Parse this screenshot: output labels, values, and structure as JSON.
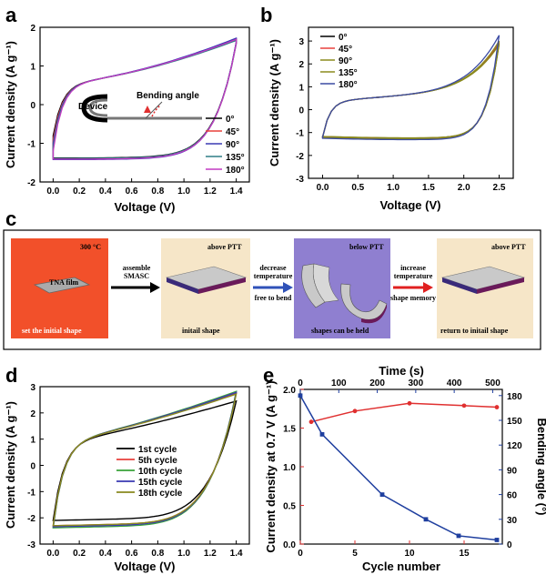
{
  "panel_labels": {
    "a": "a",
    "b": "b",
    "c": "c",
    "d": "d",
    "e": "e"
  },
  "colors": {
    "black": "#000000",
    "red": "#e8413c",
    "blue": "#3a3ab3",
    "green": "#3aa33a",
    "teal": "#2f7f86",
    "magenta": "#c23ac2",
    "olive": "#8a8a1e",
    "navy": "#3a4aa3",
    "red_series": "#e03030",
    "blue_series": "#1f3f9f",
    "orange_box": "#f2502a",
    "beige_box": "#f6e6c8",
    "purple_box": "#8f7fd0"
  },
  "chart_data": [
    {
      "id": "a",
      "type": "line",
      "xlabel": "Voltage (V)",
      "ylabel": "Current density (A g⁻¹)",
      "xlim": [
        -0.1,
        1.5
      ],
      "ylim": [
        -2,
        2
      ],
      "xticks": [
        "0.0",
        "0.2",
        "0.4",
        "0.6",
        "0.8",
        "1.0",
        "1.2",
        "1.4"
      ],
      "yticks": [
        "-2",
        "-1",
        "0",
        "1",
        "2"
      ],
      "series": [
        {
          "name": "0°",
          "upper_start": -0.8,
          "upper_end": 1.7,
          "lower_start": -1.38,
          "lower_end": 1.6
        },
        {
          "name": "45°",
          "upper_start": -0.9,
          "upper_end": 1.68,
          "lower_start": -1.4,
          "lower_end": 1.58
        },
        {
          "name": "90°",
          "upper_start": -1.0,
          "upper_end": 1.72,
          "lower_start": -1.42,
          "lower_end": 1.62
        },
        {
          "name": "135°",
          "upper_start": -1.1,
          "upper_end": 1.66,
          "lower_start": -1.39,
          "lower_end": 1.57
        },
        {
          "name": "180°",
          "upper_start": -1.2,
          "upper_end": 1.69,
          "lower_start": -1.41,
          "lower_end": 1.59
        }
      ],
      "inset": {
        "device_label": "Device",
        "angle_label": "Bending angle"
      }
    },
    {
      "id": "b",
      "type": "line",
      "xlabel": "Voltage (V)",
      "ylabel": "Current density (A g⁻¹)",
      "xlim": [
        -0.2,
        2.7
      ],
      "ylim": [
        -3,
        3.6
      ],
      "xticks": [
        "0.0",
        "0.5",
        "1.0",
        "1.5",
        "2.0",
        "2.5"
      ],
      "yticks": [
        "-3",
        "-2",
        "-1",
        "0",
        "1",
        "2",
        "3"
      ],
      "series": [
        {
          "name": "0°",
          "upper_end": 2.9,
          "lower_mid": -1.18
        },
        {
          "name": "45°",
          "upper_end": 2.95,
          "lower_mid": -1.2
        },
        {
          "name": "90°",
          "upper_end": 3.0,
          "lower_mid": -1.22
        },
        {
          "name": "135°",
          "upper_end": 2.85,
          "lower_mid": -1.17
        },
        {
          "name": "180°",
          "upper_end": 3.25,
          "lower_mid": -1.25
        }
      ]
    },
    {
      "id": "c",
      "type": "diagram",
      "boxes": [
        {
          "top": "300 °C",
          "item": "TNA film",
          "bottom": "set the initial shape"
        },
        {
          "top": "above PTT",
          "bottom": "initail shape"
        },
        {
          "top": "below PTT",
          "bottom": "shapes can be held"
        },
        {
          "top": "above PTT",
          "bottom": "return to initail shape"
        }
      ],
      "arrows": [
        {
          "above": [
            "assemble",
            "SMASC"
          ],
          "below": []
        },
        {
          "above": [
            "decrease",
            "temperature"
          ],
          "below": [
            "free to bend"
          ]
        },
        {
          "above": [
            "increase",
            "temperature"
          ],
          "below": [
            "shape memory"
          ]
        }
      ]
    },
    {
      "id": "d",
      "type": "line",
      "xlabel": "Voltage (V)",
      "ylabel": "Current density (A g⁻¹)",
      "xlim": [
        -0.1,
        1.5
      ],
      "ylim": [
        -3,
        3
      ],
      "xticks": [
        "0.0",
        "0.2",
        "0.4",
        "0.6",
        "0.8",
        "1.0",
        "1.2",
        "1.4"
      ],
      "yticks": [
        "-3",
        "-2",
        "-1",
        "0",
        "1",
        "2",
        "3"
      ],
      "series": [
        {
          "name": "1st cycle",
          "upper_end": 2.45,
          "lower_mid": -2.1
        },
        {
          "name": "5th cycle",
          "upper_end": 2.75,
          "lower_mid": -2.3
        },
        {
          "name": "10th cycle",
          "upper_end": 2.82,
          "lower_mid": -2.38
        },
        {
          "name": "15th cycle",
          "upper_end": 2.78,
          "lower_mid": -2.34
        },
        {
          "name": "18th cycle",
          "upper_end": 2.72,
          "lower_mid": -2.3
        }
      ]
    },
    {
      "id": "e",
      "type": "line",
      "xlabel": "Cycle number",
      "top_xlabel": "Time (s)",
      "ylabel": "Current density at 0.7 V (A g⁻¹)",
      "y2label": "Bending angle (°)",
      "xlim": [
        0,
        18.5
      ],
      "ylim": [
        0,
        2.0
      ],
      "y2lim": [
        0,
        187.5
      ],
      "top_xlim": [
        0,
        525
      ],
      "xticks": [
        "0",
        "5",
        "10",
        "15"
      ],
      "xtick_values": [
        0,
        5,
        10,
        15
      ],
      "yticks": [
        "0.0",
        "0.5",
        "1.0",
        "1.5",
        "2.0"
      ],
      "ytick_values": [
        0,
        0.5,
        1.0,
        1.5,
        2.0
      ],
      "y2ticks": [
        "0",
        "30",
        "60",
        "90",
        "120",
        "150",
        "180"
      ],
      "y2tick_values": [
        0,
        30,
        60,
        90,
        120,
        150,
        180
      ],
      "top_xticks": [
        "0",
        "100",
        "200",
        "300",
        "400",
        "500"
      ],
      "top_xtick_values": [
        0,
        100,
        200,
        300,
        400,
        500
      ],
      "series": [
        {
          "name": "Current density",
          "axis": "left",
          "x": [
            1,
            5,
            10,
            15,
            18
          ],
          "y": [
            1.58,
            1.72,
            1.82,
            1.79,
            1.77
          ]
        },
        {
          "name": "Bending angle",
          "axis": "right",
          "x": [
            0,
            2,
            7.5,
            11.5,
            14.5,
            18
          ],
          "y": [
            180,
            133,
            60,
            30,
            10,
            5
          ]
        }
      ]
    }
  ]
}
